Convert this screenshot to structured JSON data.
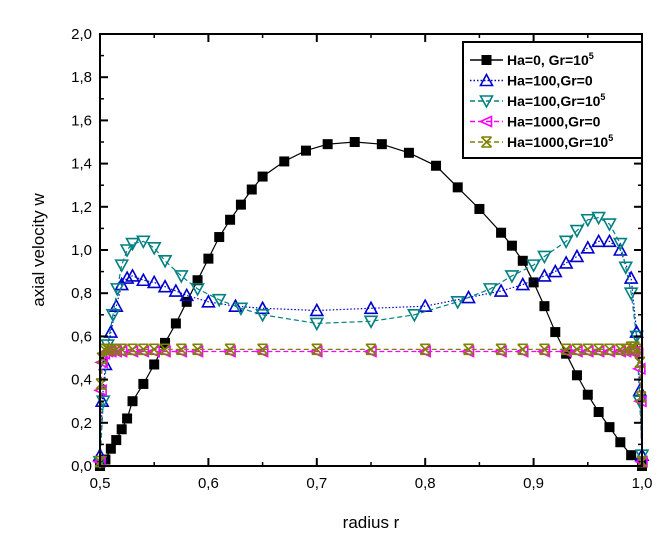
{
  "chart_data": {
    "type": "line",
    "xlabel": "radius r",
    "ylabel": "axial velocity w",
    "xlim": [
      0.5,
      1.0
    ],
    "ylim": [
      0.0,
      2.0
    ],
    "xticks": [
      "0,5",
      "0,6",
      "0,7",
      "0,8",
      "0,9",
      "1,0"
    ],
    "yticks": [
      "0,0",
      "0,2",
      "0,4",
      "0,6",
      "0,8",
      "1,0",
      "1,2",
      "1,4",
      "1,6",
      "1,8",
      "2,0"
    ],
    "grid": false,
    "legend_position": "top-right",
    "series": [
      {
        "name": "Ha=0, Gr=10",
        "name_sup": "5",
        "color": "#000000",
        "marker": "square-filled",
        "line": "solid",
        "x": [
          0.5,
          0.505,
          0.51,
          0.515,
          0.52,
          0.525,
          0.53,
          0.54,
          0.55,
          0.56,
          0.57,
          0.58,
          0.59,
          0.6,
          0.61,
          0.62,
          0.63,
          0.64,
          0.65,
          0.67,
          0.69,
          0.71,
          0.735,
          0.76,
          0.785,
          0.81,
          0.83,
          0.85,
          0.87,
          0.88,
          0.89,
          0.9,
          0.91,
          0.92,
          0.93,
          0.94,
          0.95,
          0.96,
          0.97,
          0.98,
          0.99,
          1.0
        ],
        "y": [
          0.0,
          0.03,
          0.08,
          0.12,
          0.17,
          0.22,
          0.3,
          0.38,
          0.47,
          0.57,
          0.66,
          0.76,
          0.86,
          0.96,
          1.06,
          1.14,
          1.21,
          1.28,
          1.34,
          1.41,
          1.46,
          1.49,
          1.5,
          1.49,
          1.45,
          1.39,
          1.29,
          1.19,
          1.08,
          1.02,
          0.95,
          0.85,
          0.74,
          0.62,
          0.52,
          0.42,
          0.33,
          0.25,
          0.18,
          0.11,
          0.05,
          0.0
        ]
      },
      {
        "name": "Ha=100,Gr=0",
        "color": "#0000cc",
        "marker": "triangle-up-open",
        "line": "dotted",
        "x": [
          0.5,
          0.502,
          0.505,
          0.51,
          0.515,
          0.52,
          0.525,
          0.53,
          0.54,
          0.55,
          0.56,
          0.57,
          0.58,
          0.6,
          0.625,
          0.65,
          0.7,
          0.75,
          0.8,
          0.84,
          0.87,
          0.89,
          0.91,
          0.92,
          0.93,
          0.94,
          0.95,
          0.96,
          0.97,
          0.98,
          0.99,
          0.995,
          0.998,
          1.0
        ],
        "y": [
          0.05,
          0.3,
          0.47,
          0.62,
          0.74,
          0.84,
          0.87,
          0.88,
          0.86,
          0.85,
          0.83,
          0.81,
          0.79,
          0.76,
          0.74,
          0.73,
          0.72,
          0.73,
          0.74,
          0.78,
          0.81,
          0.84,
          0.88,
          0.9,
          0.94,
          0.97,
          1.01,
          1.04,
          1.04,
          1.0,
          0.87,
          0.62,
          0.35,
          0.05
        ]
      },
      {
        "name": "Ha=100,Gr=10",
        "name_sup": "5",
        "color": "#008080",
        "marker": "triangle-down-open",
        "line": "dashed",
        "x": [
          0.5,
          0.503,
          0.507,
          0.512,
          0.516,
          0.52,
          0.525,
          0.53,
          0.54,
          0.55,
          0.56,
          0.575,
          0.59,
          0.61,
          0.63,
          0.65,
          0.7,
          0.75,
          0.79,
          0.83,
          0.86,
          0.88,
          0.9,
          0.91,
          0.93,
          0.94,
          0.95,
          0.96,
          0.97,
          0.98,
          0.985,
          0.99,
          0.995,
          0.998,
          1.0
        ],
        "y": [
          0.02,
          0.3,
          0.56,
          0.7,
          0.82,
          0.93,
          1.0,
          1.03,
          1.04,
          1.01,
          0.95,
          0.88,
          0.82,
          0.77,
          0.73,
          0.7,
          0.66,
          0.67,
          0.7,
          0.76,
          0.82,
          0.88,
          0.93,
          0.97,
          1.04,
          1.09,
          1.14,
          1.15,
          1.12,
          1.03,
          0.92,
          0.8,
          0.6,
          0.3,
          0.05
        ]
      },
      {
        "name": "Ha=1000,Gr=0",
        "color": "#ff00ff",
        "marker": "triangle-left",
        "line": "dashed",
        "x": [
          0.5,
          0.501,
          0.502,
          0.504,
          0.507,
          0.51,
          0.515,
          0.52,
          0.53,
          0.54,
          0.55,
          0.56,
          0.575,
          0.59,
          0.62,
          0.65,
          0.7,
          0.75,
          0.8,
          0.84,
          0.87,
          0.89,
          0.91,
          0.93,
          0.94,
          0.95,
          0.96,
          0.97,
          0.98,
          0.985,
          0.99,
          0.993,
          0.996,
          0.998,
          0.999,
          1.0
        ],
        "y": [
          0.02,
          0.35,
          0.48,
          0.52,
          0.53,
          0.53,
          0.53,
          0.53,
          0.53,
          0.53,
          0.53,
          0.53,
          0.53,
          0.53,
          0.53,
          0.53,
          0.53,
          0.53,
          0.53,
          0.53,
          0.53,
          0.53,
          0.53,
          0.53,
          0.53,
          0.53,
          0.53,
          0.53,
          0.53,
          0.53,
          0.53,
          0.53,
          0.52,
          0.45,
          0.3,
          0.02
        ]
      },
      {
        "name": "Ha=1000,Gr=10",
        "name_sup": "5",
        "color": "#808000",
        "marker": "x-star",
        "line": "dashed",
        "x": [
          0.5,
          0.501,
          0.502,
          0.504,
          0.507,
          0.51,
          0.515,
          0.52,
          0.53,
          0.54,
          0.55,
          0.56,
          0.575,
          0.59,
          0.62,
          0.65,
          0.7,
          0.75,
          0.8,
          0.84,
          0.87,
          0.89,
          0.91,
          0.93,
          0.94,
          0.95,
          0.96,
          0.97,
          0.98,
          0.985,
          0.99,
          0.993,
          0.996,
          0.998,
          0.999,
          1.0
        ],
        "y": [
          0.02,
          0.38,
          0.5,
          0.54,
          0.54,
          0.54,
          0.54,
          0.54,
          0.54,
          0.54,
          0.54,
          0.54,
          0.54,
          0.54,
          0.54,
          0.54,
          0.54,
          0.54,
          0.54,
          0.54,
          0.54,
          0.54,
          0.54,
          0.54,
          0.54,
          0.54,
          0.54,
          0.54,
          0.54,
          0.54,
          0.55,
          0.55,
          0.54,
          0.48,
          0.32,
          0.02
        ]
      }
    ]
  }
}
